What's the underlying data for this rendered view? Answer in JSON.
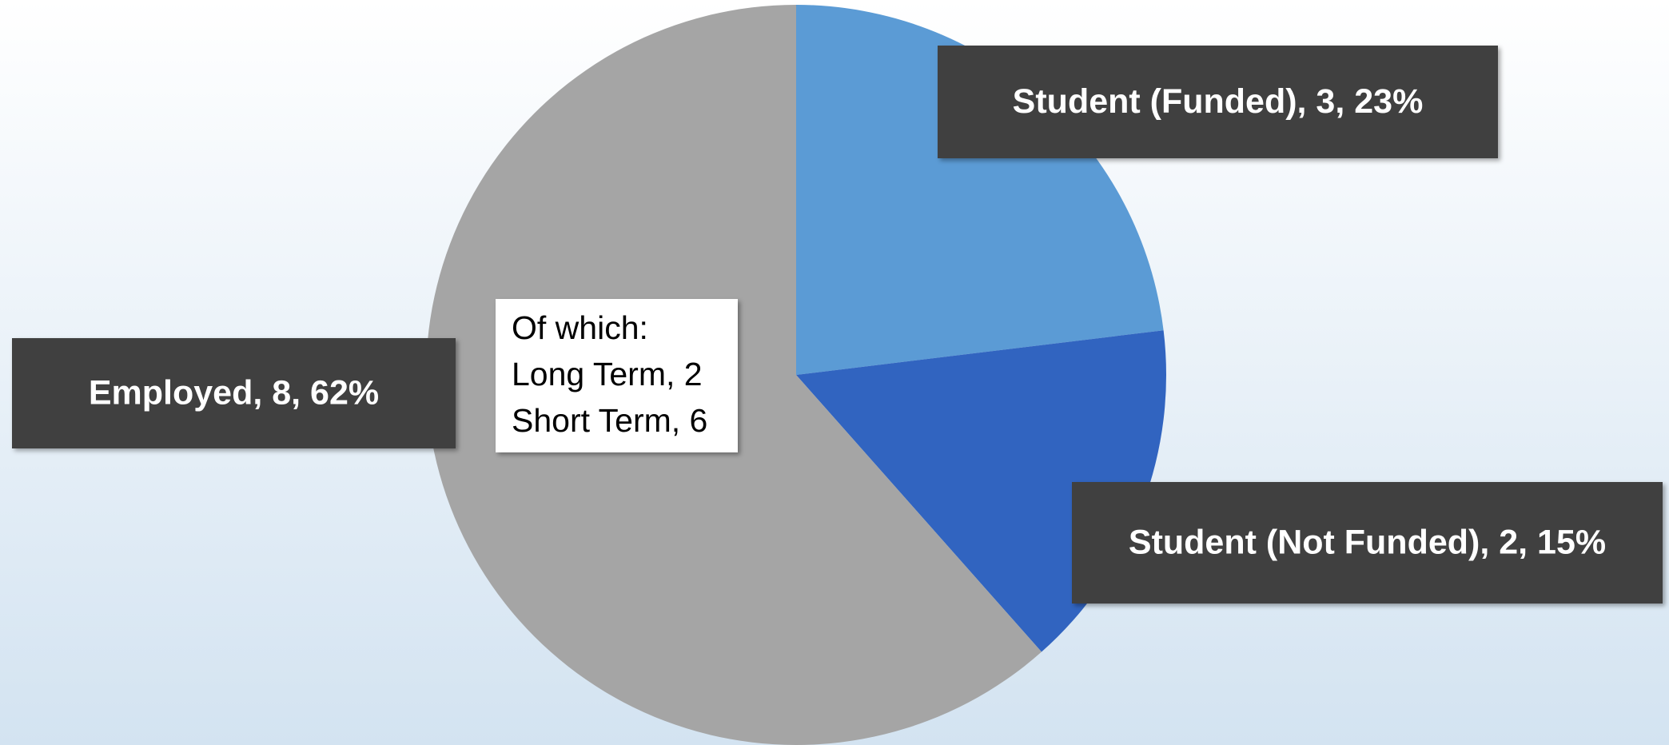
{
  "chart_data": {
    "type": "pie",
    "categories": [
      "Student (Funded)",
      "Student (Not Funded)",
      "Employed"
    ],
    "values": [
      3,
      2,
      8
    ],
    "value_labels": [
      "Student (Funded), 3, 23%",
      "Student (Not Funded), 2, 15%",
      "Employed, 8, 62%"
    ],
    "colors": [
      "#5b9bd5",
      "#3164c0",
      "#a5a5a5"
    ],
    "annotations": [
      "Of which:",
      "Long Term, 2",
      "Short Term, 6"
    ]
  }
}
